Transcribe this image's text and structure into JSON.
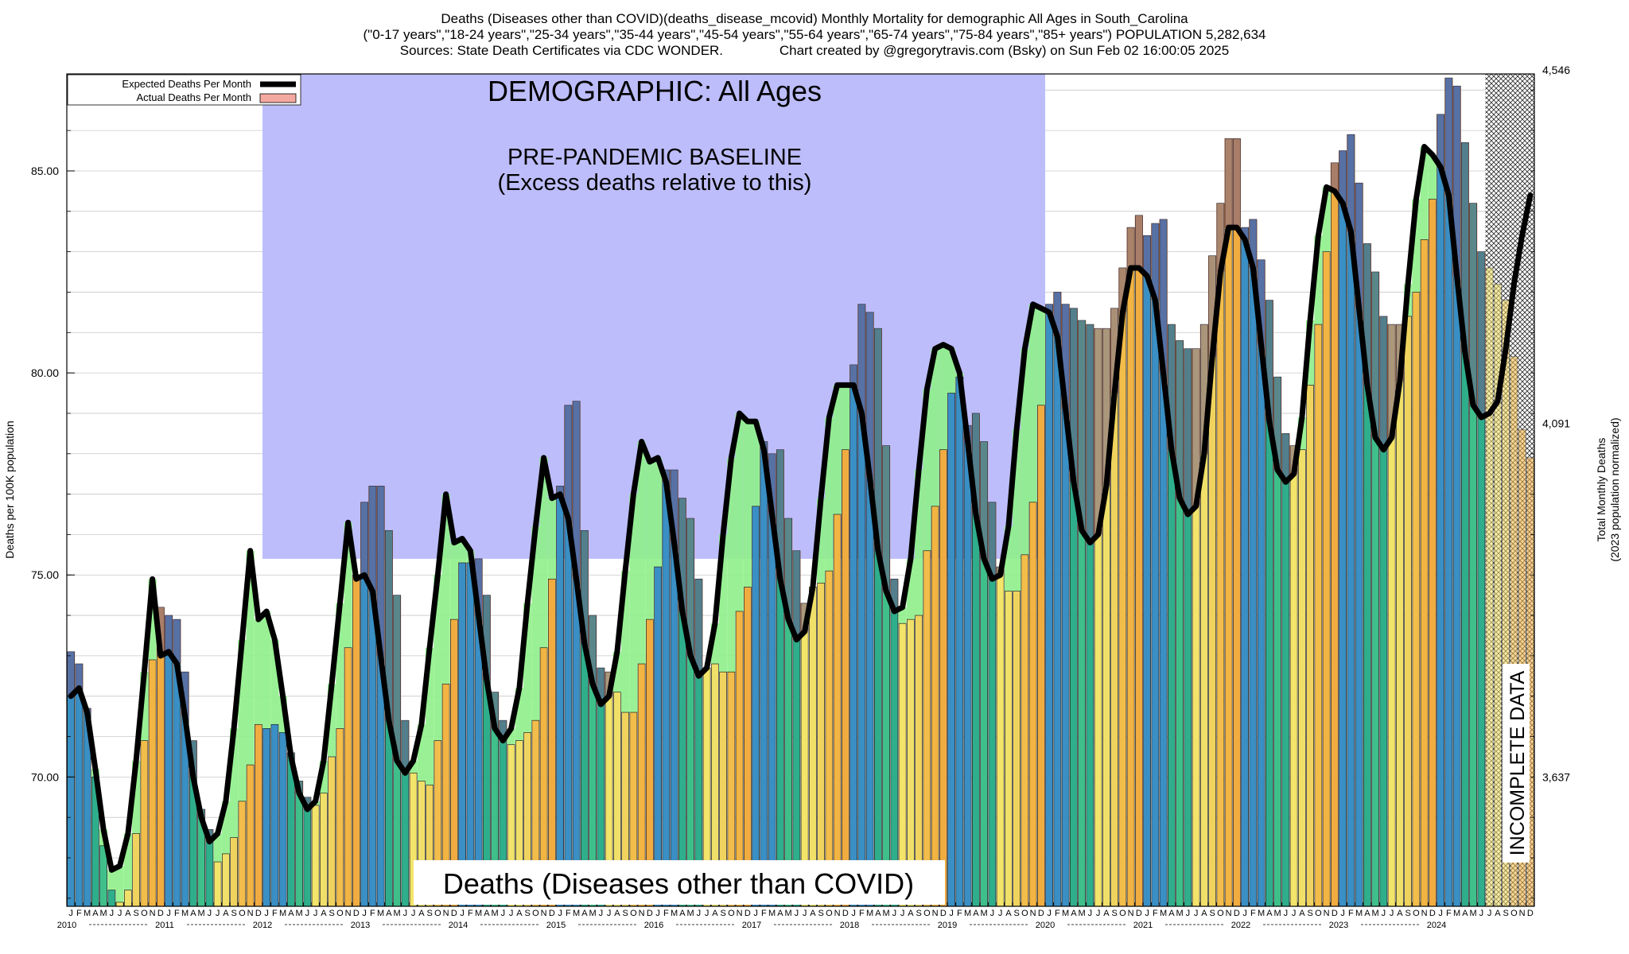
{
  "header": {
    "line1": "Deaths (Diseases other than COVID)(deaths_disease_mcovid) Monthly Mortality for demographic All Ages in South_Carolina",
    "line2": "(\"0-17 years\",\"18-24 years\",\"25-34 years\",\"35-44 years\",\"45-54 years\",\"55-64 years\",\"65-74 years\",\"75-84 years\",\"85+ years\") POPULATION 5,282,634",
    "line3": "Sources: State Death Certificates via CDC WONDER.               Chart created by @gregorytravis.com (Bsky) on Sun Feb 02 16:00:05 2025"
  },
  "chart_data": {
    "type": "bar",
    "ylabel": "Deaths per 100K population",
    "ylabel_right": "Total Monthly Deaths",
    "ylabel_right_sub": "(2023 population normalized)",
    "ylim": [
      66.8,
      87.4
    ],
    "y_ticks": [
      "70.00",
      "75.00",
      "80.00",
      "85.00"
    ],
    "y_tick_values": [
      70,
      75,
      80,
      85
    ],
    "right_ticks": [
      "3,637",
      "4,091",
      "4,546"
    ],
    "right_tick_values": [
      70,
      78.75,
      87.5
    ],
    "grid": true,
    "legend_position": "top-left",
    "legend": {
      "expected": "Expected Deaths Per Month",
      "actual": "Actual Deaths Per Month"
    },
    "annotations": {
      "demographic": "DEMOGRAPHIC: All Ages",
      "baseline_line1": "PRE-PANDEMIC BASELINE",
      "baseline_line2": "(Excess deaths relative to this)",
      "incomplete": "INCOMPLETE DATA",
      "bottom_title": "Deaths (Diseases other than COVID)"
    },
    "baseline_period": [
      "2012-01",
      "2019-12"
    ],
    "incomplete_from": "2024-07",
    "month_letters": [
      "J",
      "F",
      "M",
      "A",
      "M",
      "J",
      "J",
      "A",
      "S",
      "O",
      "N",
      "D"
    ],
    "years": [
      "2010",
      "2011",
      "2012",
      "2013",
      "2014",
      "2015",
      "2016",
      "2017",
      "2018",
      "2019",
      "2020",
      "2021",
      "2022",
      "2023",
      "2024"
    ],
    "start_month": "2010-01",
    "actual": [
      73.1,
      72.8,
      71.7,
      70.0,
      68.3,
      67.2,
      66.9,
      67.2,
      68.6,
      70.9,
      72.9,
      74.2,
      74.0,
      73.9,
      72.6,
      70.9,
      69.2,
      68.7,
      67.9,
      68.1,
      68.5,
      69.4,
      70.3,
      71.3,
      71.2,
      71.3,
      71.1,
      70.6,
      69.9,
      69.5,
      69.3,
      69.6,
      70.5,
      71.2,
      73.2,
      75.0,
      76.8,
      77.2,
      77.2,
      76.1,
      74.5,
      71.4,
      70.1,
      69.9,
      69.8,
      70.9,
      72.3,
      73.9,
      75.3,
      75.3,
      75.4,
      74.5,
      72.1,
      71.4,
      70.8,
      70.9,
      71.1,
      71.4,
      73.2,
      74.9,
      77.2,
      79.2,
      79.3,
      76.1,
      74.0,
      72.7,
      72.6,
      72.1,
      71.6,
      71.6,
      72.8,
      73.9,
      75.2,
      77.6,
      77.6,
      76.9,
      76.4,
      74.9,
      72.7,
      72.8,
      72.6,
      72.6,
      74.1,
      74.7,
      76.7,
      78.3,
      78.0,
      78.1,
      76.4,
      75.6,
      74.3,
      74.7,
      74.8,
      75.1,
      76.5,
      78.1,
      80.2,
      81.7,
      81.5,
      81.1,
      78.2,
      74.9,
      73.8,
      73.9,
      74.0,
      75.6,
      76.7,
      78.1,
      79.5,
      79.9,
      78.7,
      79.0,
      78.3,
      76.8,
      75.2,
      74.6,
      74.6,
      75.5,
      76.8,
      79.2,
      81.7,
      82.0,
      81.7,
      81.6,
      81.3,
      81.2,
      81.1,
      81.1,
      81.6,
      82.6,
      83.6,
      83.9,
      83.4,
      83.7,
      83.8,
      81.2,
      80.8,
      80.6,
      80.6,
      81.2,
      82.9,
      84.2,
      85.8,
      85.8,
      83.6,
      83.8,
      82.8,
      81.8,
      79.9,
      78.5,
      78.2,
      78.1,
      79.7,
      81.2,
      83.0,
      85.2,
      85.5,
      85.9,
      84.7,
      83.2,
      82.5,
      81.4,
      81.2,
      81.2,
      81.4,
      82.0,
      83.3,
      84.3,
      86.4,
      87.3,
      87.1,
      85.7,
      84.2,
      83.0,
      82.6,
      82.2,
      81.8,
      80.4,
      78.6,
      77.9
    ],
    "expected": [
      72.0,
      72.2,
      71.6,
      70.2,
      68.7,
      67.7,
      67.8,
      68.6,
      70.4,
      72.6,
      74.9,
      73.0,
      73.1,
      72.8,
      71.5,
      70.0,
      69.0,
      68.4,
      68.6,
      69.4,
      71.2,
      73.4,
      75.6,
      73.9,
      74.1,
      73.4,
      72.0,
      70.5,
      69.6,
      69.2,
      69.4,
      70.4,
      72.3,
      74.3,
      76.3,
      74.9,
      75.0,
      74.6,
      73.0,
      71.4,
      70.4,
      70.1,
      70.4,
      71.3,
      73.2,
      75.0,
      77.0,
      75.8,
      75.9,
      75.6,
      74.0,
      72.4,
      71.2,
      70.9,
      71.2,
      72.2,
      74.3,
      76.2,
      77.9,
      76.9,
      77.0,
      76.4,
      74.9,
      73.3,
      72.3,
      71.8,
      72.0,
      73.1,
      75.1,
      77.0,
      78.3,
      77.8,
      77.9,
      77.3,
      75.8,
      74.1,
      73.0,
      72.5,
      72.7,
      73.8,
      76.0,
      77.9,
      79.0,
      78.8,
      78.8,
      78.1,
      76.5,
      74.9,
      73.9,
      73.4,
      73.6,
      74.7,
      76.9,
      78.9,
      79.7,
      79.7,
      79.7,
      79.0,
      77.4,
      75.6,
      74.6,
      74.1,
      74.2,
      75.4,
      77.6,
      79.6,
      80.6,
      80.7,
      80.6,
      80.0,
      78.3,
      76.5,
      75.4,
      74.9,
      75.0,
      76.2,
      78.6,
      80.6,
      81.7,
      81.6,
      81.5,
      80.9,
      79.1,
      77.3,
      76.1,
      75.8,
      76.0,
      77.2,
      79.5,
      81.5,
      82.6,
      82.6,
      82.4,
      81.8,
      80.0,
      78.1,
      76.9,
      76.5,
      76.7,
      78.0,
      80.4,
      82.5,
      83.6,
      83.6,
      83.3,
      82.6,
      80.7,
      78.8,
      77.6,
      77.3,
      77.5,
      78.9,
      81.3,
      83.4,
      84.6,
      84.5,
      84.2,
      83.5,
      81.6,
      79.7,
      78.4,
      78.1,
      78.4,
      79.8,
      82.2,
      84.3,
      85.6,
      85.4,
      85.1,
      84.4,
      82.4,
      80.5,
      79.2,
      78.9,
      79.0,
      79.3,
      80.6,
      82.2,
      83.4,
      84.4
    ]
  }
}
